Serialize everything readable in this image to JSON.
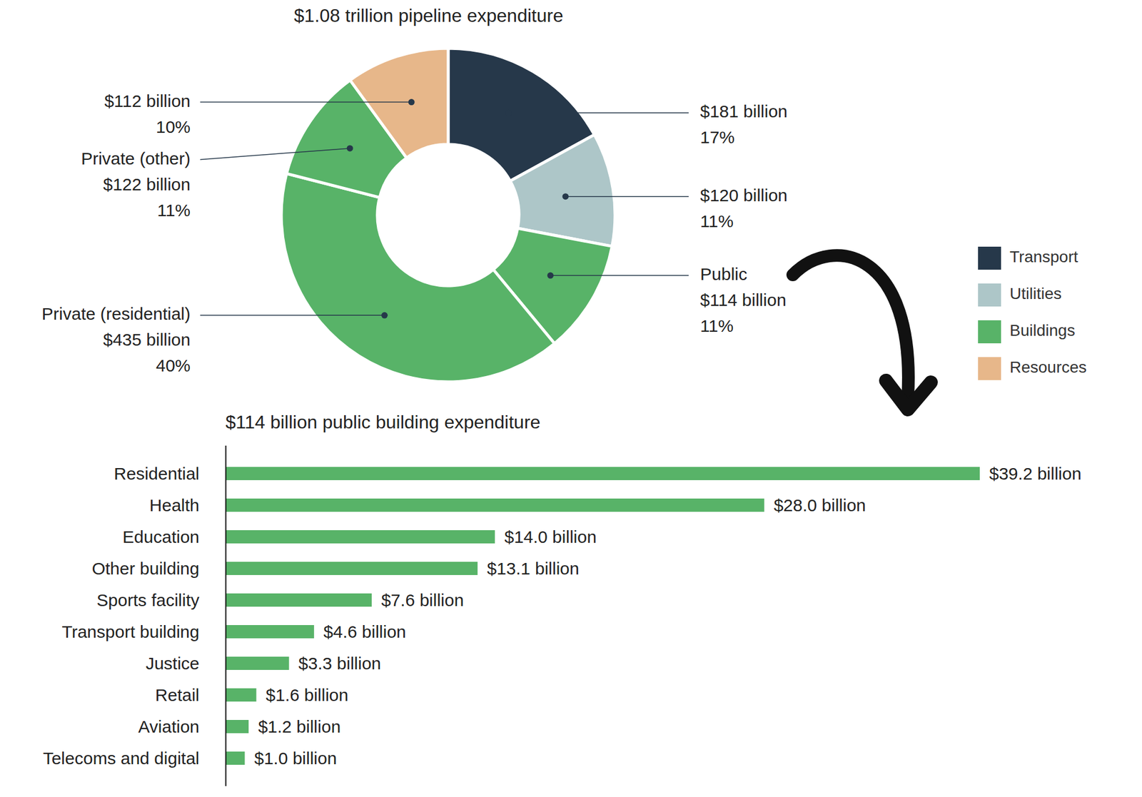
{
  "chart_data": [
    {
      "type": "donut",
      "title": "$1.08 trillion pipeline expenditure",
      "categories": [
        null,
        null,
        "Public",
        "Private (residential)",
        "Private (other)",
        null
      ],
      "values": [
        17,
        11,
        11,
        40,
        11,
        10
      ],
      "value_labels": [
        "17%",
        "11%",
        "11%",
        "40%",
        "11%",
        "10%"
      ],
      "billions": [
        181,
        120,
        114,
        435,
        122,
        112
      ],
      "billion_labels": [
        "$181 billion",
        "$120 billion",
        "$114 billion",
        "$435 billion",
        "$122 billion",
        "$112 billion"
      ],
      "groups": [
        "Transport",
        "Utilities",
        "Buildings",
        "Buildings",
        "Buildings",
        "Resources"
      ],
      "legend_items": [
        {
          "name": "Transport",
          "color": "#26384a"
        },
        {
          "name": "Utilities",
          "color": "#adc6c8"
        },
        {
          "name": "Buildings",
          "color": "#58b368"
        },
        {
          "name": "Resources",
          "color": "#e7b78a"
        }
      ],
      "legend": "right",
      "data_labels": true
    },
    {
      "type": "bar",
      "title": "$114 billion public building expenditure",
      "orientation": "horizontal",
      "categories": [
        "Residential",
        "Health",
        "Education",
        "Other building",
        "Sports facility",
        "Transport building",
        "Justice",
        "Retail",
        "Aviation",
        "Telecoms and digital"
      ],
      "values": [
        39.2,
        28.0,
        14.0,
        13.1,
        7.6,
        4.6,
        3.3,
        1.6,
        1.2,
        1.0
      ],
      "value_labels": [
        "$39.2 billion",
        "$28.0 billion",
        "$14.0 billion",
        "$13.1 billion",
        "$7.6 billion",
        "$4.6 billion",
        "$3.3 billion",
        "$1.6 billion",
        "$1.2 billion",
        "$1.0 billion"
      ],
      "color": "#58b368",
      "xlim": [
        0,
        39.2
      ],
      "tick_labels": "y",
      "data_labels": true
    }
  ]
}
